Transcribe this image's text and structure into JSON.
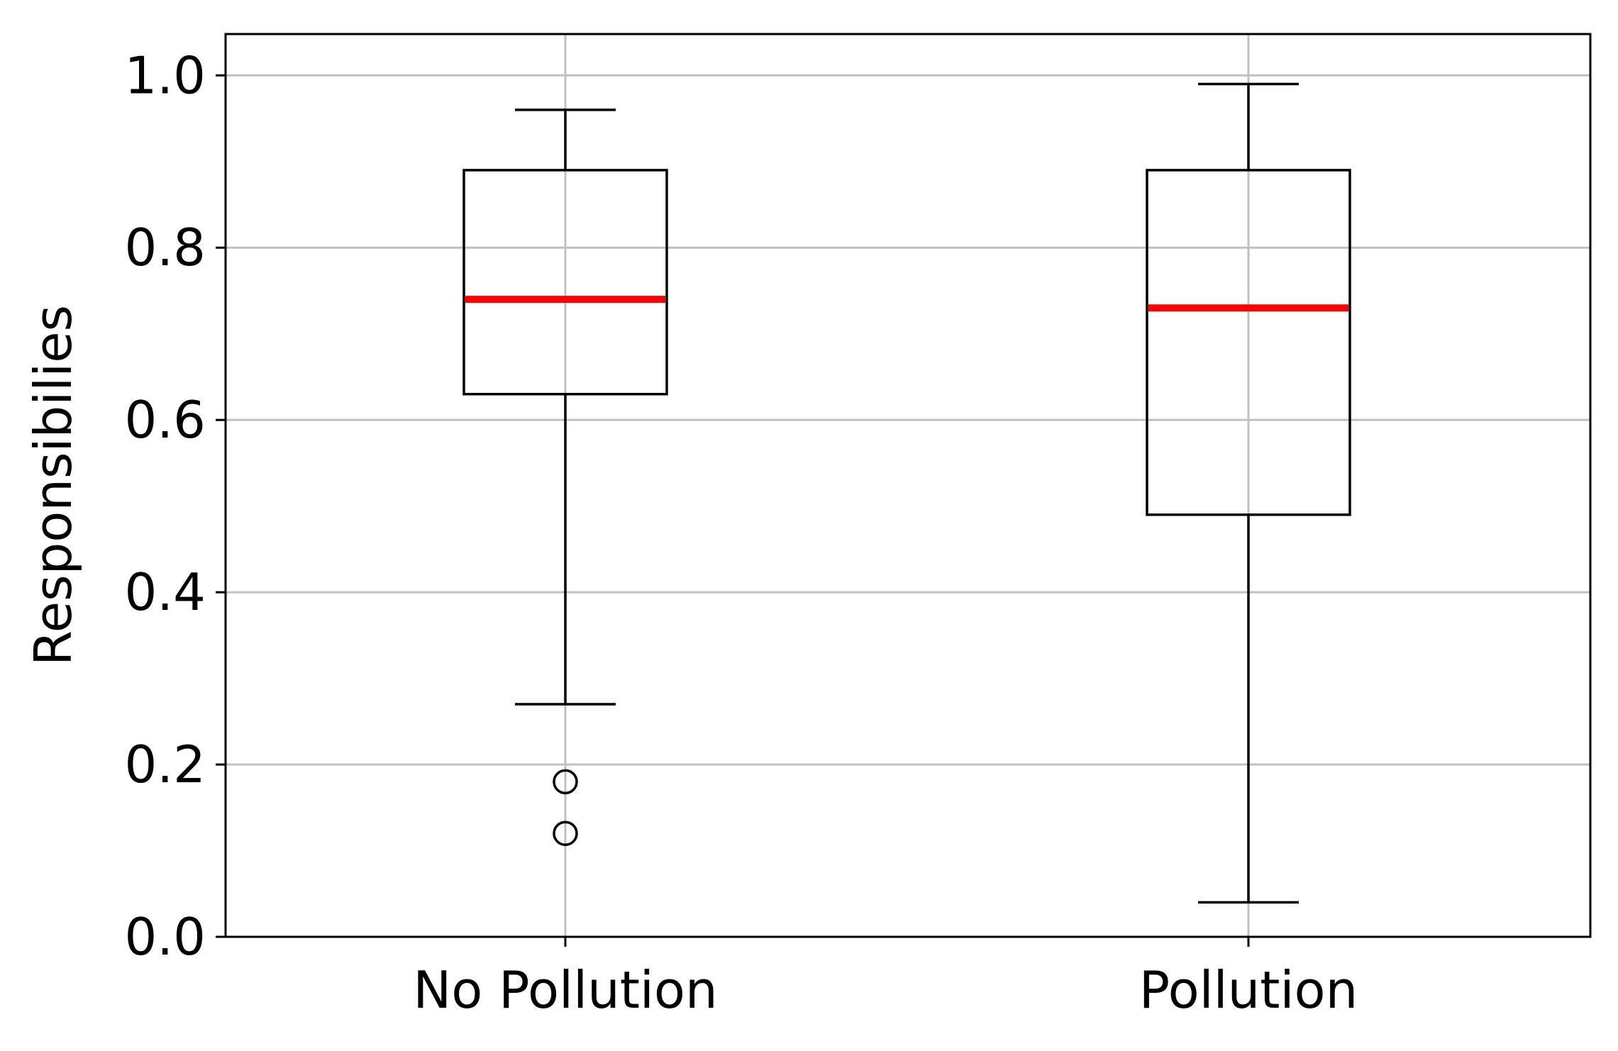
{
  "chart_data": {
    "type": "box",
    "title": "",
    "xlabel": "",
    "ylabel": "Responsibilies",
    "ylim": [
      0,
      1.0
    ],
    "yticks": [
      "0.0",
      "0.2",
      "0.4",
      "0.6",
      "0.8",
      "1.0"
    ],
    "grid": true,
    "categories": [
      "No Pollution",
      "Pollution"
    ],
    "boxes": [
      {
        "category": "No Pollution",
        "whisker_low": 0.27,
        "q1": 0.63,
        "median": 0.74,
        "q3": 0.89,
        "whisker_high": 0.96,
        "outliers": [
          0.18,
          0.12
        ]
      },
      {
        "category": "Pollution",
        "whisker_low": 0.04,
        "q1": 0.49,
        "median": 0.73,
        "q3": 0.89,
        "whisker_high": 0.99,
        "outliers": []
      }
    ],
    "colors": {
      "median": "#ff0000",
      "box": "#000000",
      "grid": "#c0c0c0"
    }
  }
}
